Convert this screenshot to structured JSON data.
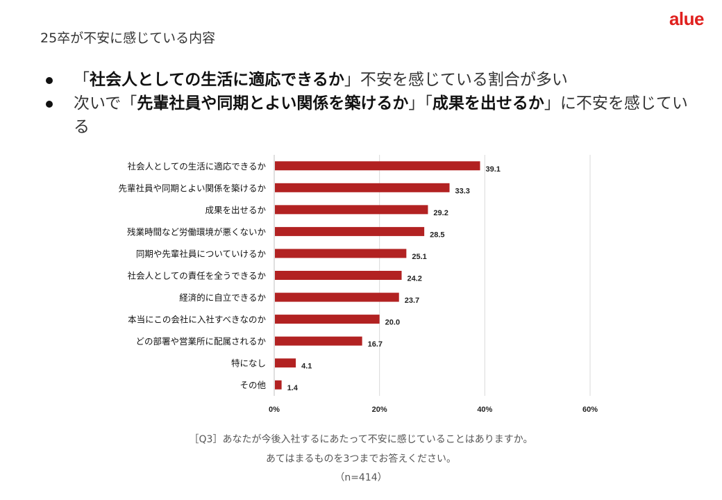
{
  "brand": {
    "logo": "alue",
    "color": "#e0201e"
  },
  "slide": {
    "title": "25卒が不安に感じている内容",
    "bullets": [
      {
        "parts": [
          {
            "text": "「",
            "bold": false
          },
          {
            "text": "社会人としての生活に適応できるか",
            "bold": true
          },
          {
            "text": "」不安を感じている割合が多い",
            "bold": false
          }
        ]
      },
      {
        "parts": [
          {
            "text": "次いで「",
            "bold": false
          },
          {
            "text": "先輩社員や同期とよい関係を築けるか",
            "bold": true
          },
          {
            "text": "」「",
            "bold": false
          },
          {
            "text": "成果を出せるか",
            "bold": true
          },
          {
            "text": "」に不安を感じている",
            "bold": false
          }
        ]
      }
    ]
  },
  "chart_data": {
    "type": "bar",
    "orientation": "horizontal",
    "categories": [
      "社会人としての生活に適応できるか",
      "先輩社員や同期とよい関係を築けるか",
      "成果を出せるか",
      "残業時間など労働環境が悪くないか",
      "同期や先輩社員についていけるか",
      "社会人としての責任を全うできるか",
      "経済的に自立できるか",
      "本当にこの会社に入社すべきなのか",
      "どの部署や営業所に配属されるか",
      "特になし",
      "その他"
    ],
    "values": [
      39.1,
      33.3,
      29.2,
      28.5,
      25.1,
      24.2,
      23.7,
      20.0,
      16.7,
      4.1,
      1.4
    ],
    "value_labels": [
      "39.1",
      "33.3",
      "29.2",
      "28.5",
      "25.1",
      "24.2",
      "23.7",
      "20.0",
      "16.7",
      "4.1",
      "1.4"
    ],
    "xlim": [
      0,
      60
    ],
    "xticks": [
      0,
      20,
      40,
      60
    ],
    "xtick_labels": [
      "0%",
      "20%",
      "40%",
      "60%"
    ],
    "grid": true,
    "bar_color": "#b22222"
  },
  "notes": {
    "question": "［Q3］あなたが今後入社するにあたって不安に感じていることはありますか。",
    "instruction": "あてはまるものを3つまでお答えください。",
    "sample": "（n=414）"
  }
}
